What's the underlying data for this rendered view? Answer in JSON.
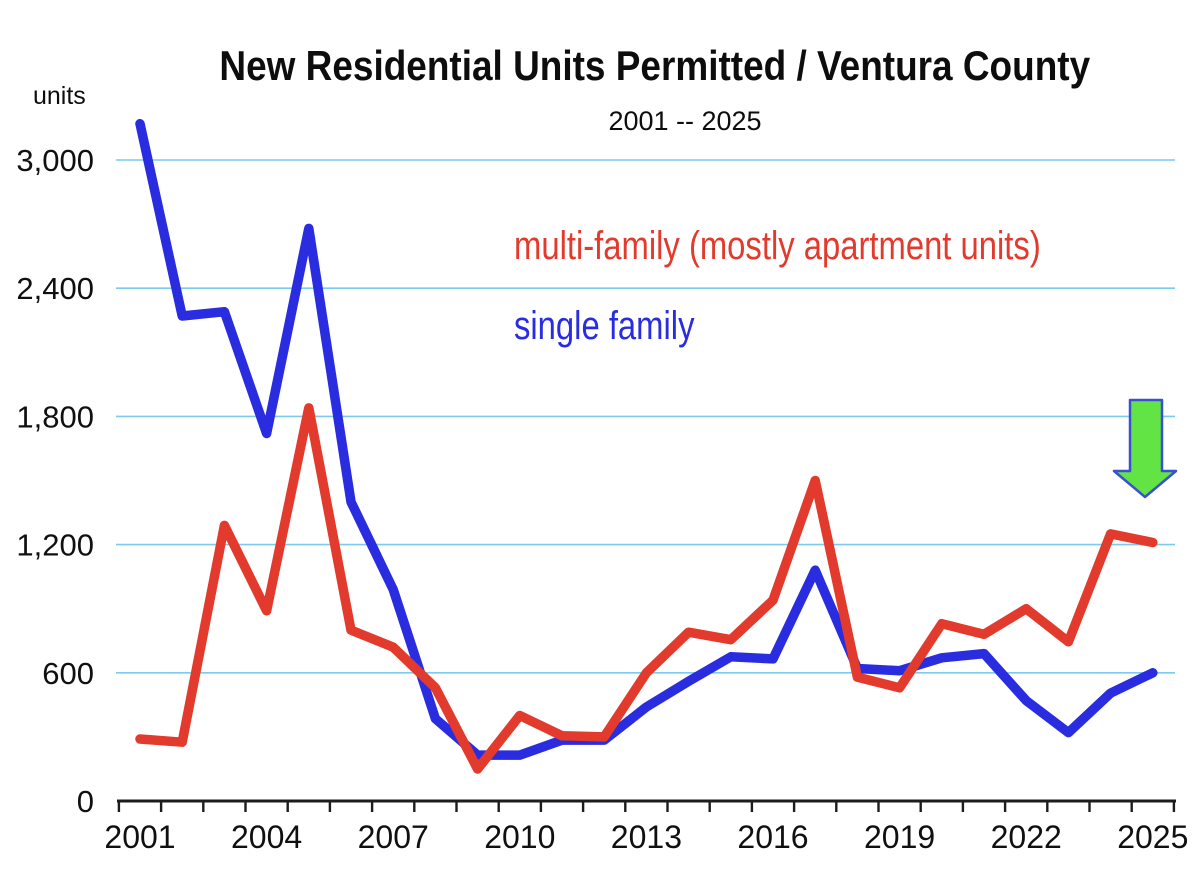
{
  "header": {
    "title": "New Residential Units Permitted / Ventura County",
    "subtitle": "2001 -- 2025",
    "y_axis_unit_label": "units"
  },
  "legend": {
    "multi_family_label": "multi-family (mostly apartment units)",
    "single_family_label": "single family"
  },
  "colors": {
    "multi_family": "#e23a2c",
    "single_family": "#2a2ce0",
    "gridline": "#7ccaee",
    "axis": "#1c1c1c",
    "tick_text": "#101010",
    "arrow_fill": "#62e444",
    "arrow_border": "#3a50d2"
  },
  "chart_data": {
    "type": "line",
    "title": "New Residential Units Permitted / Ventura County",
    "subtitle": "2001 -- 2025",
    "ylabel": "units",
    "xlabel": "",
    "grid": "horizontal",
    "ylim": [
      0,
      3300
    ],
    "y_ticks": [
      0,
      600,
      1200,
      1800,
      2400,
      3000
    ],
    "y_tick_labels": [
      "0",
      "600",
      "1,200",
      "1,800",
      "2,400",
      "3,000"
    ],
    "x": [
      2001,
      2002,
      2003,
      2004,
      2005,
      2006,
      2007,
      2008,
      2009,
      2010,
      2011,
      2012,
      2013,
      2014,
      2015,
      2016,
      2017,
      2018,
      2019,
      2020,
      2021,
      2022,
      2023,
      2024,
      2025
    ],
    "x_tick_label_years": [
      2001,
      2004,
      2007,
      2010,
      2013,
      2016,
      2019,
      2022,
      2025
    ],
    "legend_position": "inside-top-center",
    "series": [
      {
        "name": "single family",
        "color_key": "single_family",
        "values": [
          3170,
          2270,
          2290,
          1720,
          2680,
          1400,
          990,
          385,
          215,
          215,
          285,
          285,
          440,
          560,
          675,
          665,
          1080,
          620,
          610,
          670,
          690,
          470,
          320,
          505,
          600
        ]
      },
      {
        "name": "multi-family (mostly apartment units)",
        "color_key": "multi_family",
        "values": [
          290,
          275,
          1290,
          890,
          1840,
          800,
          720,
          530,
          150,
          400,
          305,
          300,
          600,
          790,
          755,
          940,
          1500,
          580,
          530,
          830,
          780,
          900,
          745,
          1250,
          1210
        ]
      }
    ],
    "annotation": {
      "shape": "down-arrow",
      "at_year": 2024.8,
      "above_value": 1450
    }
  }
}
